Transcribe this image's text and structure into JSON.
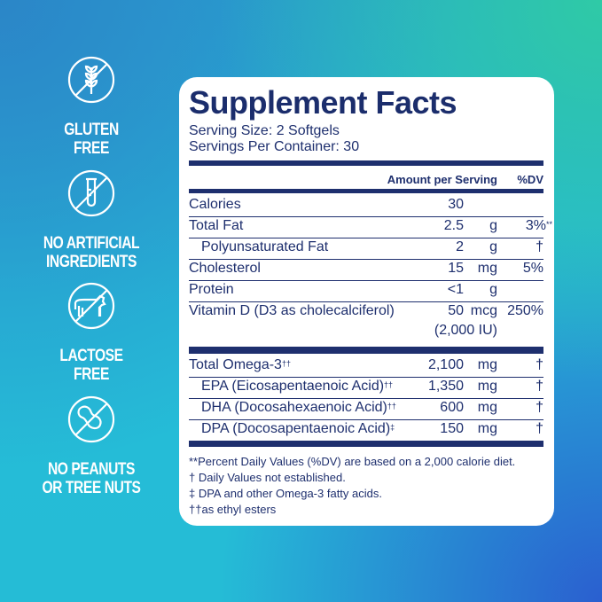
{
  "badges": [
    {
      "icon": "no-gluten-wheat-icon",
      "label": "GLUTEN FREE",
      "lines": [
        "GLUTEN",
        "FREE"
      ]
    },
    {
      "icon": "no-test-tube-icon",
      "label": "NO ARTIFICIAL INGREDIENTS",
      "lines": [
        "NO ARTIFICIAL",
        "INGREDIENTS"
      ]
    },
    {
      "icon": "no-cow-icon",
      "label": "LACTOSE FREE",
      "lines": [
        "LACTOSE",
        "FREE"
      ]
    },
    {
      "icon": "no-peanut-icon",
      "label": "NO PEANUTS OR TREE NUTS",
      "lines": [
        "NO PEANUTS",
        "OR TREE NUTS"
      ]
    }
  ],
  "facts": {
    "title": "Supplement Facts",
    "serving_size": "Serving Size: 2 Softgels",
    "servings_per_container": "Servings Per Container: 30",
    "header_amount": "Amount per Serving",
    "header_dv": "%DV",
    "rows": [
      {
        "label": "Calories",
        "amount": "30",
        "unit": "",
        "dv": ""
      },
      {
        "label": "Total Fat",
        "amount": "2.5",
        "unit": "g",
        "dv": "3%",
        "dv_mark": "**"
      },
      {
        "label": "Polyunsaturated Fat",
        "amount": "2",
        "unit": "g",
        "dv": "†"
      },
      {
        "label": "Cholesterol",
        "amount": "15",
        "unit": "mg",
        "dv": "5%"
      },
      {
        "label": "Protein",
        "amount": "<1",
        "unit": "g",
        "dv": ""
      },
      {
        "label": "Vitamin D (D3 as cholecalciferol)",
        "amount": "50",
        "unit": "mcg",
        "dv": "250%",
        "extra": "(2,000 IU)"
      }
    ],
    "omega_rows": [
      {
        "label": "Total Omega-3",
        "mark": "††",
        "amount": "2,100",
        "unit": "mg",
        "dv": "†"
      },
      {
        "label": "EPA (Eicosapentaenoic Acid)",
        "mark": "††",
        "amount": "1,350",
        "unit": "mg",
        "dv": "†"
      },
      {
        "label": "DHA (Docosahexaenoic Acid)",
        "mark": "††",
        "amount": "600",
        "unit": "mg",
        "dv": "†"
      },
      {
        "label": "DPA (Docosapentaenoic Acid)",
        "mark": "‡",
        "amount": "150",
        "unit": "mg",
        "dv": "†"
      }
    ],
    "footnotes": [
      "**Percent Daily Values (%DV) are based on a 2,000 calorie diet.",
      "† Daily Values not established.",
      "‡ DPA and other Omega-3 fatty acids.",
      "††as ethyl esters"
    ]
  },
  "colors": {
    "navy": "#1e2f6e",
    "background_blue": "#27a8d2",
    "background_teal": "#2fcaa6"
  }
}
